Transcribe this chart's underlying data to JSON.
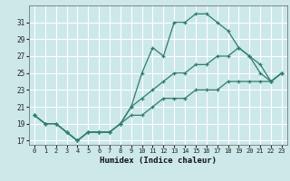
{
  "xlabel": "Humidex (Indice chaleur)",
  "x_ticks": [
    0,
    1,
    2,
    3,
    4,
    5,
    6,
    7,
    8,
    9,
    10,
    11,
    12,
    13,
    14,
    15,
    16,
    17,
    18,
    19,
    20,
    21,
    22,
    23
  ],
  "xlim": [
    -0.5,
    23.5
  ],
  "ylim": [
    16.5,
    33
  ],
  "y_ticks": [
    17,
    19,
    21,
    23,
    25,
    27,
    29,
    31
  ],
  "bg_color": "#cce8e8",
  "grid_color": "#ffffff",
  "line_color": "#2e7d6e",
  "line1": [
    20,
    19,
    19,
    18,
    17,
    18,
    18,
    18,
    19,
    21,
    25,
    28,
    27,
    31,
    31,
    32,
    32,
    31,
    30,
    28,
    27,
    26,
    24,
    25
  ],
  "line2": [
    20,
    19,
    19,
    18,
    17,
    18,
    18,
    18,
    19,
    21,
    22,
    23,
    24,
    25,
    25,
    26,
    26,
    27,
    27,
    28,
    27,
    25,
    24,
    25
  ],
  "line3": [
    20,
    19,
    19,
    18,
    17,
    18,
    18,
    18,
    19,
    20,
    20,
    21,
    22,
    22,
    22,
    23,
    23,
    23,
    24,
    24,
    24,
    24,
    24,
    25
  ]
}
